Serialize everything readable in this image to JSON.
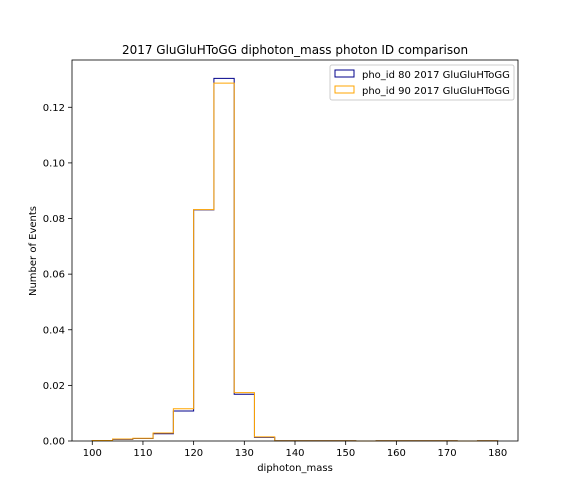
{
  "chart_data": {
    "type": "histogram-step",
    "title": "2017 GluGluHToGG diphoton_mass photon ID comparison",
    "xlabel": "diphoton_mass",
    "ylabel": "Number of Events",
    "xlim": [
      96,
      184
    ],
    "ylim": [
      0,
      0.137
    ],
    "xticks": [
      100,
      110,
      120,
      130,
      140,
      150,
      160,
      170,
      180
    ],
    "yticks": [
      0.0,
      0.02,
      0.04,
      0.06,
      0.08,
      0.1,
      0.12
    ],
    "ytick_labels": [
      "0.00",
      "0.02",
      "0.04",
      "0.06",
      "0.08",
      "0.10",
      "0.12"
    ],
    "grid": false,
    "legend_position": "top-right",
    "bin_edges": [
      100,
      104,
      108,
      112,
      116,
      120,
      124,
      128,
      132,
      136,
      140,
      144,
      148,
      152,
      156,
      160,
      164,
      168,
      172,
      176,
      180
    ],
    "series": [
      {
        "name": "pho_id 80 2017 GluGluHToGG",
        "color": "#00008b",
        "values": [
          0.0002,
          0.0006,
          0.0009,
          0.0026,
          0.0108,
          0.0831,
          0.1304,
          0.0168,
          0.0013,
          0.0001,
          0.0001,
          0.0001,
          0.0001,
          0,
          0.0001,
          0.0001,
          0.0001,
          0.0001,
          0,
          0.0001
        ]
      },
      {
        "name": "pho_id 90 2017 GluGluHToGG",
        "color": "#ffa500",
        "values": [
          0.0002,
          0.0007,
          0.001,
          0.0029,
          0.0116,
          0.0832,
          0.1287,
          0.0174,
          0.0015,
          0.0001,
          0.0001,
          0.0001,
          0.0001,
          0,
          0.0001,
          0.0001,
          0.0001,
          0.0001,
          0,
          0.0001
        ]
      }
    ]
  }
}
